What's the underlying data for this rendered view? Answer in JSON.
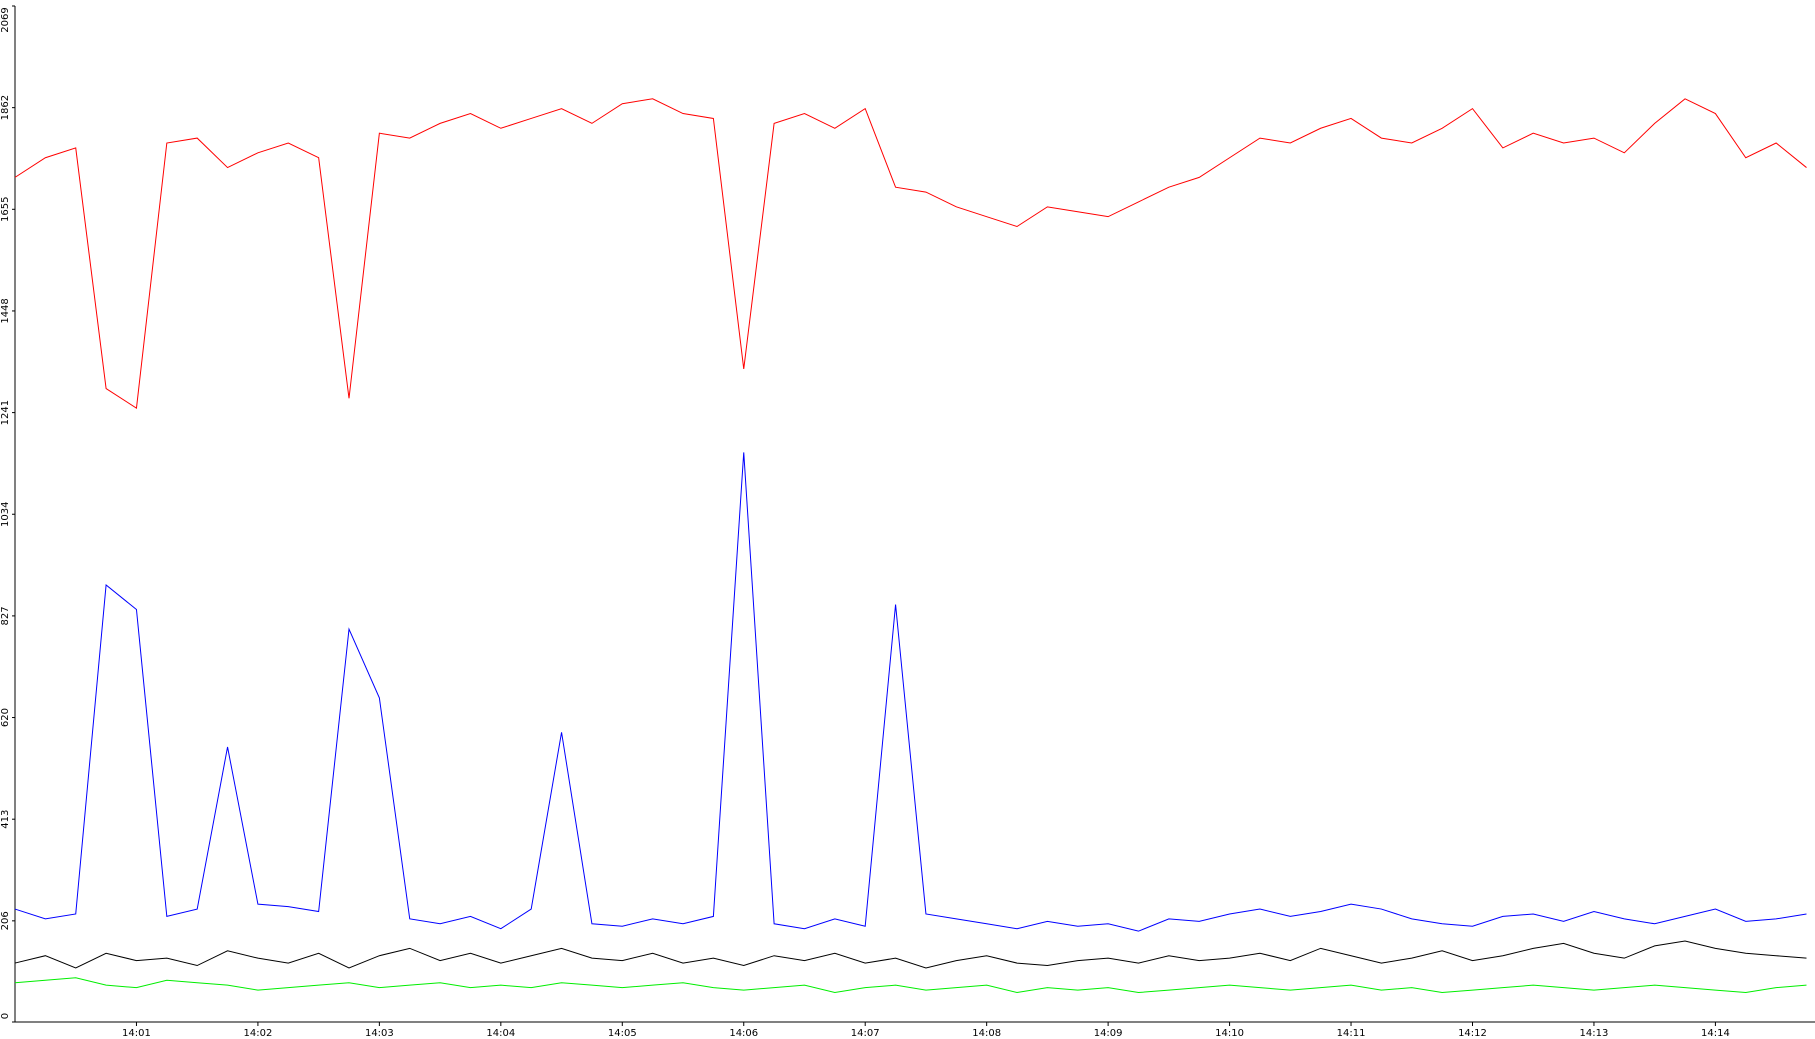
{
  "chart_data": {
    "type": "line",
    "x": [
      0,
      0.25,
      0.5,
      0.75,
      1,
      1.25,
      1.5,
      1.75,
      2,
      2.25,
      2.5,
      2.75,
      3,
      3.25,
      3.5,
      3.75,
      4,
      4.25,
      4.5,
      4.75,
      5,
      5.25,
      5.5,
      5.75,
      6,
      6.25,
      6.5,
      6.75,
      7,
      7.25,
      7.5,
      7.75,
      8,
      8.25,
      8.5,
      8.75,
      9,
      9.25,
      9.5,
      9.75,
      10,
      10.25,
      10.5,
      10.75,
      11,
      11.25,
      11.5,
      11.75,
      12,
      12.25,
      12.5,
      12.75,
      13,
      13.25,
      13.5,
      13.75,
      14,
      14.25,
      14.5,
      14.75
    ],
    "series": [
      {
        "color": "#ff0000",
        "values": [
          1720,
          1760,
          1780,
          1290,
          1250,
          1790,
          1800,
          1740,
          1770,
          1790,
          1760,
          1270,
          1810,
          1800,
          1830,
          1850,
          1820,
          1840,
          1860,
          1830,
          1870,
          1880,
          1850,
          1840,
          1330,
          1830,
          1850,
          1820,
          1860,
          1700,
          1690,
          1660,
          1640,
          1620,
          1660,
          1650,
          1640,
          1670,
          1700,
          1720,
          1760,
          1800,
          1790,
          1820,
          1840,
          1800,
          1790,
          1820,
          1860,
          1780,
          1810,
          1790,
          1800,
          1770,
          1830,
          1880,
          1850,
          1760,
          1790,
          1740
        ]
      },
      {
        "color": "#0000ff",
        "values": [
          230,
          210,
          220,
          890,
          840,
          215,
          230,
          560,
          240,
          235,
          225,
          800,
          660,
          210,
          200,
          215,
          190,
          230,
          590,
          200,
          195,
          210,
          200,
          215,
          1160,
          200,
          190,
          210,
          195,
          850,
          220,
          210,
          200,
          190,
          205,
          195,
          200,
          185,
          210,
          205,
          220,
          230,
          215,
          225,
          240,
          230,
          210,
          200,
          195,
          215,
          220,
          205,
          225,
          210,
          200,
          215,
          230,
          205,
          210,
          220
        ]
      },
      {
        "color": "#000000",
        "values": [
          120,
          135,
          110,
          140,
          125,
          130,
          115,
          145,
          130,
          120,
          140,
          110,
          135,
          150,
          125,
          140,
          120,
          135,
          150,
          130,
          125,
          140,
          120,
          130,
          115,
          135,
          125,
          140,
          120,
          130,
          110,
          125,
          135,
          120,
          115,
          125,
          130,
          120,
          135,
          125,
          130,
          140,
          125,
          150,
          135,
          120,
          130,
          145,
          125,
          135,
          150,
          160,
          140,
          130,
          155,
          165,
          150,
          140,
          135,
          130
        ]
      },
      {
        "color": "#00ee00",
        "values": [
          80,
          85,
          90,
          75,
          70,
          85,
          80,
          75,
          65,
          70,
          75,
          80,
          70,
          75,
          80,
          70,
          75,
          70,
          80,
          75,
          70,
          75,
          80,
          70,
          65,
          70,
          75,
          60,
          70,
          75,
          65,
          70,
          75,
          60,
          70,
          65,
          70,
          60,
          65,
          70,
          75,
          70,
          65,
          70,
          75,
          65,
          70,
          60,
          65,
          70,
          75,
          70,
          65,
          70,
          75,
          70,
          65,
          60,
          70,
          75
        ]
      }
    ],
    "xlim": [
      0,
      14.82
    ],
    "xticks": [
      {
        "value": 1,
        "label": "14:01"
      },
      {
        "value": 2,
        "label": "14:02"
      },
      {
        "value": 3,
        "label": "14:03"
      },
      {
        "value": 4,
        "label": "14:04"
      },
      {
        "value": 5,
        "label": "14:05"
      },
      {
        "value": 6,
        "label": "14:06"
      },
      {
        "value": 7,
        "label": "14:07"
      },
      {
        "value": 8,
        "label": "14:08"
      },
      {
        "value": 9,
        "label": "14:09"
      },
      {
        "value": 10,
        "label": "14:10"
      },
      {
        "value": 11,
        "label": "14:11"
      },
      {
        "value": 12,
        "label": "14:12"
      },
      {
        "value": 13,
        "label": "14:13"
      },
      {
        "value": 14,
        "label": "14:14"
      }
    ],
    "ylim": [
      0,
      2069
    ],
    "yticks": [
      0,
      206,
      413,
      620,
      827,
      1034,
      1241,
      1448,
      1655,
      1862,
      2069
    ]
  }
}
